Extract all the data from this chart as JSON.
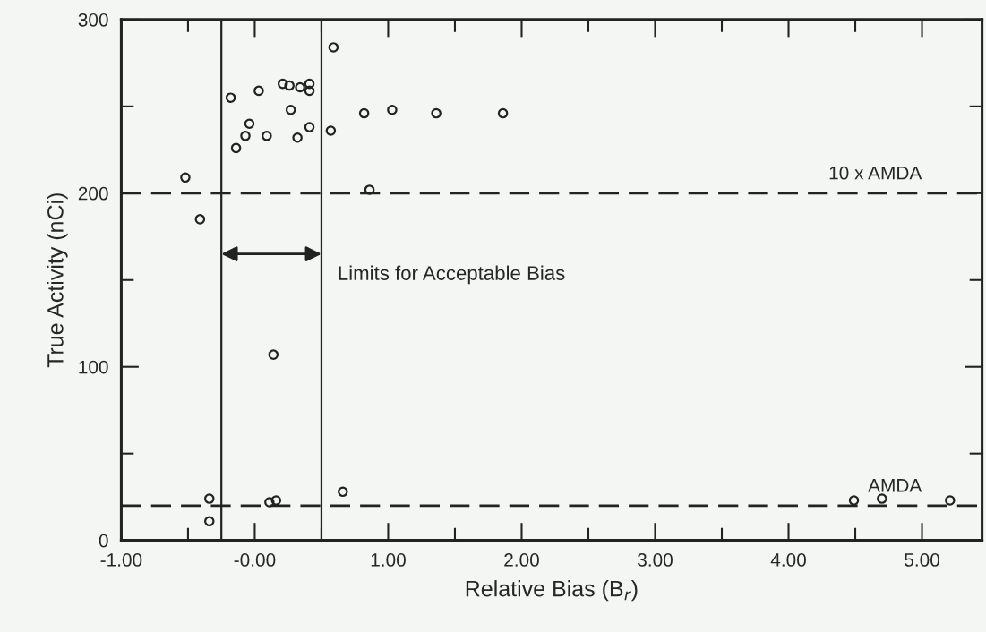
{
  "chart_data": {
    "type": "scatter",
    "xlabel": "Relative Bias (B$_{r}$)",
    "ylabel": "True Activity (nCi)",
    "x": [
      -0.52,
      -0.41,
      -0.18,
      0.03,
      -0.14,
      -0.07,
      -0.04,
      0.09,
      0.21,
      0.26,
      0.34,
      0.41,
      0.41,
      0.27,
      0.32,
      0.41,
      0.57,
      0.59,
      0.82,
      1.03,
      1.36,
      1.86,
      0.86,
      -0.34,
      -0.34,
      0.14,
      0.11,
      0.16,
      0.66,
      4.49,
      4.7,
      5.21
    ],
    "values": [
      209,
      185,
      255,
      259,
      226,
      233,
      240,
      233,
      263,
      262,
      261,
      263,
      259,
      248,
      232,
      238,
      236,
      284,
      246,
      248,
      246,
      246,
      202,
      24,
      11,
      107,
      22,
      23,
      28,
      23,
      24,
      23
    ],
    "color": "#222222",
    "marker": "circle",
    "xlim": [
      -1,
      5.45
    ],
    "ylim": [
      0,
      300
    ],
    "xticks": [
      {
        "value": -1,
        "label": "-1.00"
      },
      {
        "value": -0.5,
        "label": null
      },
      {
        "value": 0,
        "label": "-0.00"
      },
      {
        "value": 0.5,
        "label": null
      },
      {
        "value": 1,
        "label": "1.00"
      },
      {
        "value": 1.5,
        "label": null
      },
      {
        "value": 2,
        "label": "2.00"
      },
      {
        "value": 2.5,
        "label": null
      },
      {
        "value": 3,
        "label": "3.00"
      },
      {
        "value": 3.5,
        "label": null
      },
      {
        "value": 4,
        "label": "4.00"
      },
      {
        "value": 4.5,
        "label": null
      },
      {
        "value": 5,
        "label": "5.00"
      }
    ],
    "yticks": [
      0,
      {
        "value": 50,
        "label": null
      },
      100,
      {
        "value": 150,
        "label": null
      },
      200,
      {
        "value": 250,
        "label": null
      },
      300
    ],
    "ref_lines": [
      {
        "axis": "y",
        "value": 200,
        "label": "10 x AMDA",
        "line_style": "dashed",
        "color": "#222222"
      },
      {
        "axis": "y",
        "value": 20,
        "label": "AMDA",
        "line_style": "dashed",
        "color": "#222222"
      },
      {
        "axis": "x",
        "value": -0.25,
        "label": null,
        "line_style": "solid",
        "color": "#222222"
      },
      {
        "axis": "x",
        "value": 0.5,
        "label": null,
        "line_style": "solid",
        "color": "#222222"
      }
    ],
    "annotations": [
      "Limits for Acceptable Bias"
    ],
    "grid": false
  }
}
